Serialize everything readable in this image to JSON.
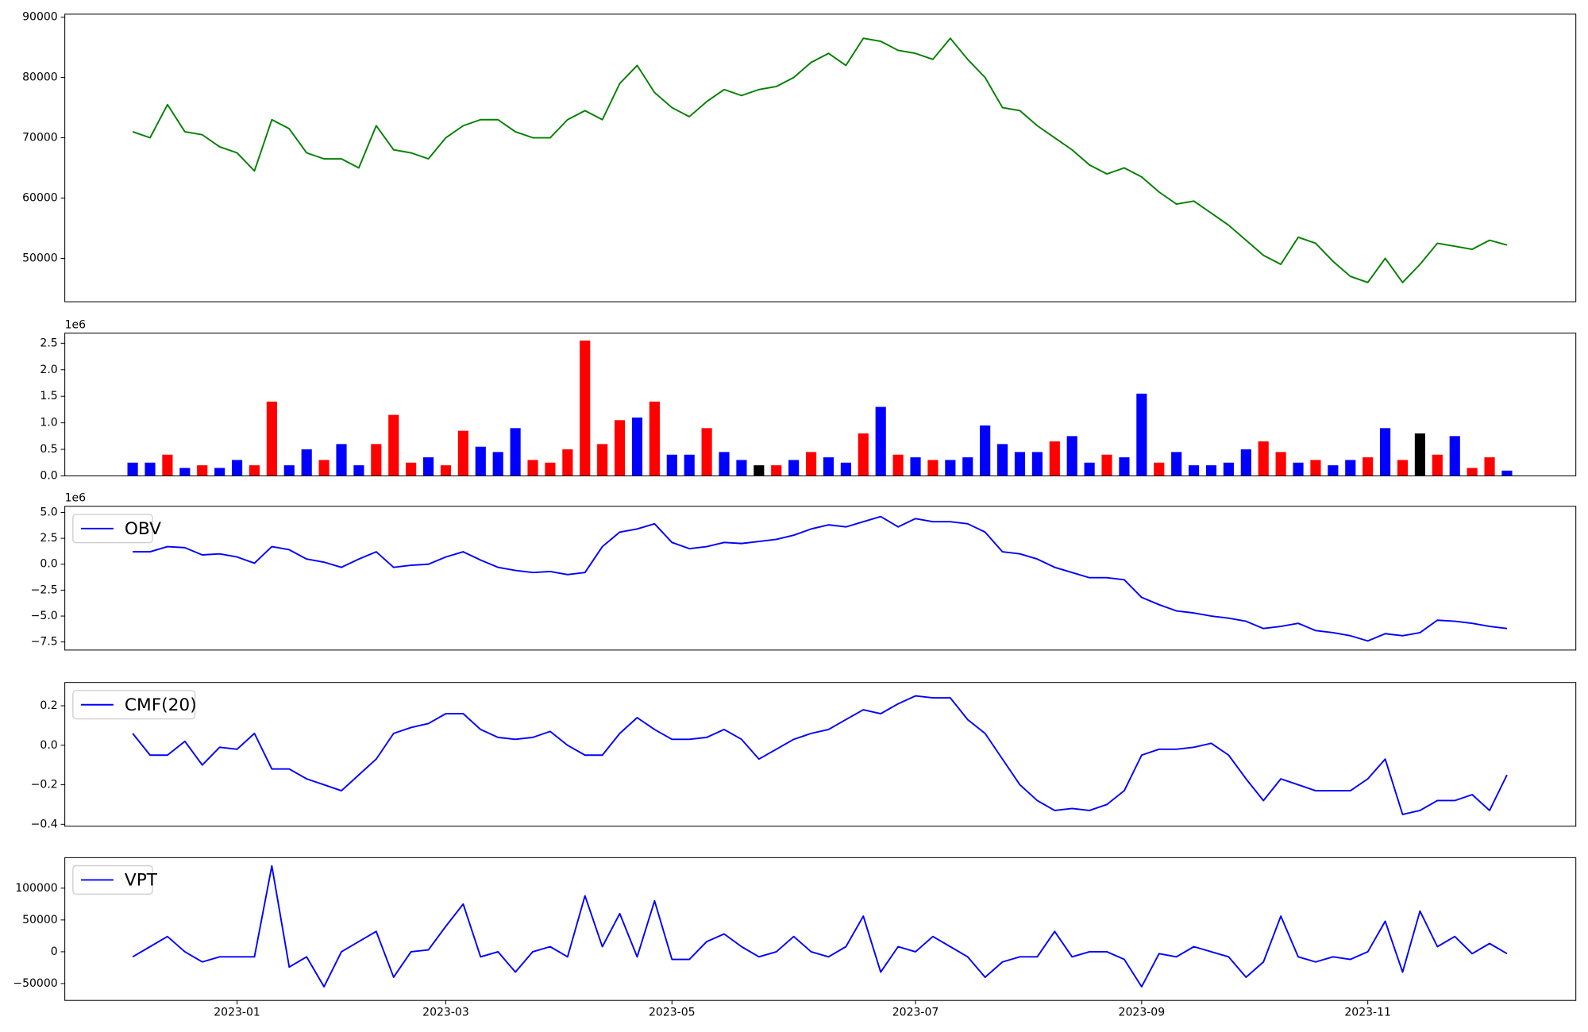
{
  "chart_data": [
    {
      "type": "line",
      "series": [
        {
          "color": "#008000",
          "values": [
            71000,
            70000,
            75500,
            71000,
            70500,
            68500,
            67500,
            64500,
            73000,
            71500,
            67500,
            66500,
            66500,
            65000,
            72000,
            68000,
            67500,
            66500,
            70000,
            72000,
            73000,
            73000,
            71000,
            70000,
            70000,
            73000,
            74500,
            73000,
            79000,
            82000,
            77500,
            75000,
            73500,
            76000,
            78000,
            77000,
            78000,
            78500,
            80000,
            82500,
            84000,
            82000,
            86500,
            86000,
            84500,
            84000,
            83000,
            86500,
            83000,
            80000,
            75000,
            74500,
            72000,
            70000,
            68000,
            65500,
            64000,
            65000,
            63500,
            61000,
            59000,
            59500,
            57500,
            55500,
            53000,
            50500,
            49000,
            53500,
            52500,
            49500,
            47000,
            46000,
            50000,
            46000,
            49000,
            52500,
            52000,
            51500,
            53000,
            52200
          ]
        }
      ],
      "ylim": [
        42800,
        90500
      ],
      "yticks": [
        50000,
        60000,
        70000,
        80000,
        90000
      ]
    },
    {
      "type": "bar",
      "offset_label": "1e6",
      "values": [
        0.25,
        0.25,
        0.4,
        0.15,
        0.2,
        0.15,
        0.3,
        0.2,
        1.4,
        0.2,
        0.5,
        0.3,
        0.6,
        0.2,
        0.6,
        1.15,
        0.25,
        0.35,
        0.2,
        0.85,
        0.55,
        0.45,
        0.9,
        0.3,
        0.25,
        0.5,
        2.55,
        0.6,
        1.05,
        1.1,
        1.4,
        0.4,
        0.4,
        0.9,
        0.45,
        0.3,
        0.2,
        0.2,
        0.3,
        0.45,
        0.35,
        0.25,
        0.8,
        1.3,
        0.4,
        0.35,
        0.3,
        0.3,
        0.35,
        0.95,
        0.6,
        0.45,
        0.45,
        0.65,
        0.75,
        0.25,
        0.4,
        0.35,
        1.55,
        0.25,
        0.45,
        0.2,
        0.2,
        0.25,
        0.5,
        0.65,
        0.45,
        0.25,
        0.3,
        0.2,
        0.3,
        0.35,
        0.9,
        0.3,
        0.8,
        0.4,
        0.75,
        0.15,
        0.35,
        0.1
      ],
      "colors": [
        "#0000ff",
        "#0000ff",
        "#ff0000",
        "#0000ff",
        "#ff0000",
        "#0000ff",
        "#0000ff",
        "#ff0000",
        "#ff0000",
        "#0000ff",
        "#0000ff",
        "#ff0000",
        "#0000ff",
        "#0000ff",
        "#ff0000",
        "#ff0000",
        "#ff0000",
        "#0000ff",
        "#ff0000",
        "#ff0000",
        "#0000ff",
        "#0000ff",
        "#0000ff",
        "#ff0000",
        "#ff0000",
        "#ff0000",
        "#ff0000",
        "#ff0000",
        "#ff0000",
        "#0000ff",
        "#ff0000",
        "#0000ff",
        "#0000ff",
        "#ff0000",
        "#0000ff",
        "#0000ff",
        "#000000",
        "#ff0000",
        "#0000ff",
        "#ff0000",
        "#0000ff",
        "#0000ff",
        "#ff0000",
        "#0000ff",
        "#ff0000",
        "#0000ff",
        "#ff0000",
        "#0000ff",
        "#0000ff",
        "#0000ff",
        "#0000ff",
        "#0000ff",
        "#0000ff",
        "#ff0000",
        "#0000ff",
        "#0000ff",
        "#ff0000",
        "#0000ff",
        "#0000ff",
        "#ff0000",
        "#0000ff",
        "#0000ff",
        "#0000ff",
        "#0000ff",
        "#0000ff",
        "#ff0000",
        "#ff0000",
        "#0000ff",
        "#ff0000",
        "#0000ff",
        "#0000ff",
        "#ff0000",
        "#0000ff",
        "#ff0000",
        "#000000",
        "#ff0000",
        "#0000ff",
        "#ff0000",
        "#ff0000",
        "#0000ff"
      ],
      "ylim": [
        0,
        2.69
      ],
      "yticks": [
        {
          "value": 0,
          "label": "0.0"
        },
        0.5,
        {
          "value": 1,
          "label": "1.0"
        },
        1.5,
        {
          "value": 2,
          "label": "2.0"
        },
        2.5
      ]
    },
    {
      "type": "line",
      "offset_label": "1e6",
      "legend": "upper left",
      "series": [
        {
          "name": "OBV",
          "color": "#0000ff",
          "values": [
            1.2,
            1.2,
            1.7,
            1.6,
            0.9,
            1.0,
            0.7,
            0.1,
            1.7,
            1.4,
            0.5,
            0.2,
            -0.3,
            0.5,
            1.2,
            -0.3,
            -0.1,
            0.0,
            0.7,
            1.2,
            0.4,
            -0.3,
            -0.6,
            -0.8,
            -0.7,
            -1.0,
            -0.8,
            1.7,
            3.1,
            3.4,
            3.9,
            2.1,
            1.5,
            1.7,
            2.1,
            2.0,
            2.2,
            2.4,
            2.8,
            3.4,
            3.8,
            3.6,
            4.1,
            4.6,
            3.6,
            4.4,
            4.1,
            4.1,
            3.9,
            3.1,
            1.2,
            1.0,
            0.5,
            -0.3,
            -0.8,
            -1.3,
            -1.3,
            -1.5,
            -3.2,
            -3.9,
            -4.5,
            -4.7,
            -5.0,
            -5.2,
            -5.5,
            -6.2,
            -6.0,
            -5.7,
            -6.4,
            -6.6,
            -6.9,
            -7.4,
            -6.7,
            -6.9,
            -6.6,
            -5.4,
            -5.5,
            -5.7,
            -6.0,
            -6.2
          ]
        }
      ],
      "ylim": [
        -8.28,
        5.59
      ],
      "yticks": [
        {
          "value": -7.5,
          "label": "−7.5"
        },
        {
          "value": -5,
          "label": "−5.0"
        },
        {
          "value": -2.5,
          "label": "−2.5"
        },
        {
          "value": 0,
          "label": "0.0"
        },
        2.5,
        {
          "value": 5,
          "label": "5.0"
        }
      ]
    },
    {
      "type": "line",
      "legend": "upper left",
      "series": [
        {
          "name": "CMF(20)",
          "color": "#0000ff",
          "values": [
            0.06,
            -0.05,
            -0.05,
            0.02,
            -0.1,
            -0.01,
            -0.02,
            0.06,
            -0.12,
            -0.12,
            -0.17,
            -0.2,
            -0.23,
            -0.15,
            -0.07,
            0.06,
            0.09,
            0.11,
            0.16,
            0.16,
            0.08,
            0.04,
            0.03,
            0.04,
            0.07,
            0.0,
            -0.05,
            -0.05,
            0.06,
            0.14,
            0.08,
            0.03,
            0.03,
            0.04,
            0.08,
            0.03,
            -0.07,
            -0.02,
            0.03,
            0.06,
            0.08,
            0.13,
            0.18,
            0.16,
            0.21,
            0.25,
            0.24,
            0.24,
            0.13,
            0.06,
            -0.07,
            -0.2,
            -0.28,
            -0.33,
            -0.32,
            -0.33,
            -0.3,
            -0.23,
            -0.05,
            -0.02,
            -0.02,
            -0.01,
            0.01,
            -0.05,
            -0.17,
            -0.28,
            -0.17,
            -0.2,
            -0.23,
            -0.23,
            -0.23,
            -0.17,
            -0.07,
            -0.35,
            -0.33,
            -0.28,
            -0.28,
            -0.25,
            -0.33,
            -0.15
          ]
        }
      ],
      "ylim": [
        -0.41,
        0.318
      ],
      "yticks": [
        {
          "value": -0.4,
          "label": "−0.4"
        },
        {
          "value": -0.2,
          "label": "−0.2"
        },
        {
          "value": 0,
          "label": "0.0"
        },
        0.2
      ]
    },
    {
      "type": "line",
      "legend": "upper left",
      "categories": [
        null,
        null,
        null,
        null,
        null,
        null,
        "2023-01",
        null,
        null,
        null,
        null,
        null,
        null,
        null,
        null,
        null,
        null,
        null,
        "2023-03",
        null,
        null,
        null,
        null,
        null,
        null,
        null,
        null,
        null,
        null,
        null,
        null,
        "2023-05",
        null,
        null,
        null,
        null,
        null,
        null,
        null,
        null,
        null,
        null,
        null,
        null,
        null,
        "2023-07",
        null,
        null,
        null,
        null,
        null,
        null,
        null,
        null,
        null,
        null,
        null,
        null,
        "2023-09",
        null,
        null,
        null,
        null,
        null,
        null,
        null,
        null,
        null,
        null,
        null,
        null,
        "2023-11",
        null,
        null,
        null,
        null,
        null,
        null,
        null,
        null
      ],
      "series": [
        {
          "name": "VPT",
          "color": "#0000ff",
          "values": [
            -8000,
            8000,
            24000,
            0,
            -16000,
            -8000,
            -8000,
            -8000,
            135000,
            -24000,
            -8000,
            -55000,
            0,
            16000,
            32000,
            -40000,
            0,
            3000,
            40000,
            75000,
            -8000,
            0,
            -32000,
            0,
            8000,
            -8000,
            88000,
            8000,
            60000,
            -8000,
            80000,
            -12000,
            -12000,
            16000,
            28000,
            8000,
            -8000,
            0,
            24000,
            0,
            -8000,
            8000,
            56000,
            -32000,
            8000,
            0,
            24000,
            8000,
            -8000,
            -40000,
            -16000,
            -8000,
            -8000,
            32000,
            -8000,
            0,
            0,
            -12000,
            -55000,
            -3000,
            -8000,
            8000,
            0,
            -8000,
            -40000,
            -16000,
            56000,
            -8000,
            -16000,
            -8000,
            -12000,
            0,
            48000,
            -32000,
            64000,
            8000,
            24000,
            -3000,
            13000,
            -3000
          ]
        }
      ],
      "ylim": [
        -76500,
        148000
      ],
      "yticks": [
        {
          "value": -50000,
          "label": "−50000"
        },
        0,
        50000,
        100000
      ]
    }
  ]
}
